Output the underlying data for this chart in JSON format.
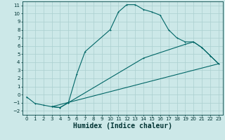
{
  "xlabel": "Humidex (Indice chaleur)",
  "ylabel": "",
  "xlim": [
    -0.5,
    23.5
  ],
  "ylim": [
    -2.5,
    11.5
  ],
  "xticks": [
    0,
    1,
    2,
    3,
    4,
    5,
    6,
    7,
    8,
    9,
    10,
    11,
    12,
    13,
    14,
    15,
    16,
    17,
    18,
    19,
    20,
    21,
    22,
    23
  ],
  "yticks": [
    -2,
    -1,
    0,
    1,
    2,
    3,
    4,
    5,
    6,
    7,
    8,
    9,
    10,
    11
  ],
  "background_color": "#cce8e8",
  "grid_color": "#aacfcf",
  "line_color": "#006666",
  "curve1_x": [
    0,
    1,
    2,
    3,
    4,
    5,
    6,
    7,
    10,
    11,
    12,
    13,
    14,
    15,
    16,
    17,
    18,
    19,
    20,
    21,
    22,
    23
  ],
  "curve1_y": [
    -0.3,
    -1.1,
    -1.3,
    -1.5,
    -1.6,
    -1.0,
    2.5,
    5.3,
    8.0,
    10.2,
    11.1,
    11.1,
    10.5,
    10.2,
    9.8,
    8.0,
    7.0,
    6.5,
    6.5,
    5.8,
    4.8,
    3.8
  ],
  "curve2_x": [
    3,
    4,
    5,
    14,
    19,
    20,
    21,
    22,
    23
  ],
  "curve2_y": [
    -1.5,
    -1.6,
    -1.0,
    4.5,
    6.2,
    6.5,
    5.8,
    4.8,
    3.8
  ],
  "curve3_x": [
    3,
    23
  ],
  "curve3_y": [
    -1.5,
    3.8
  ],
  "fontsize_tick": 5,
  "fontsize_label": 6,
  "fontsize_xlabel": 7
}
